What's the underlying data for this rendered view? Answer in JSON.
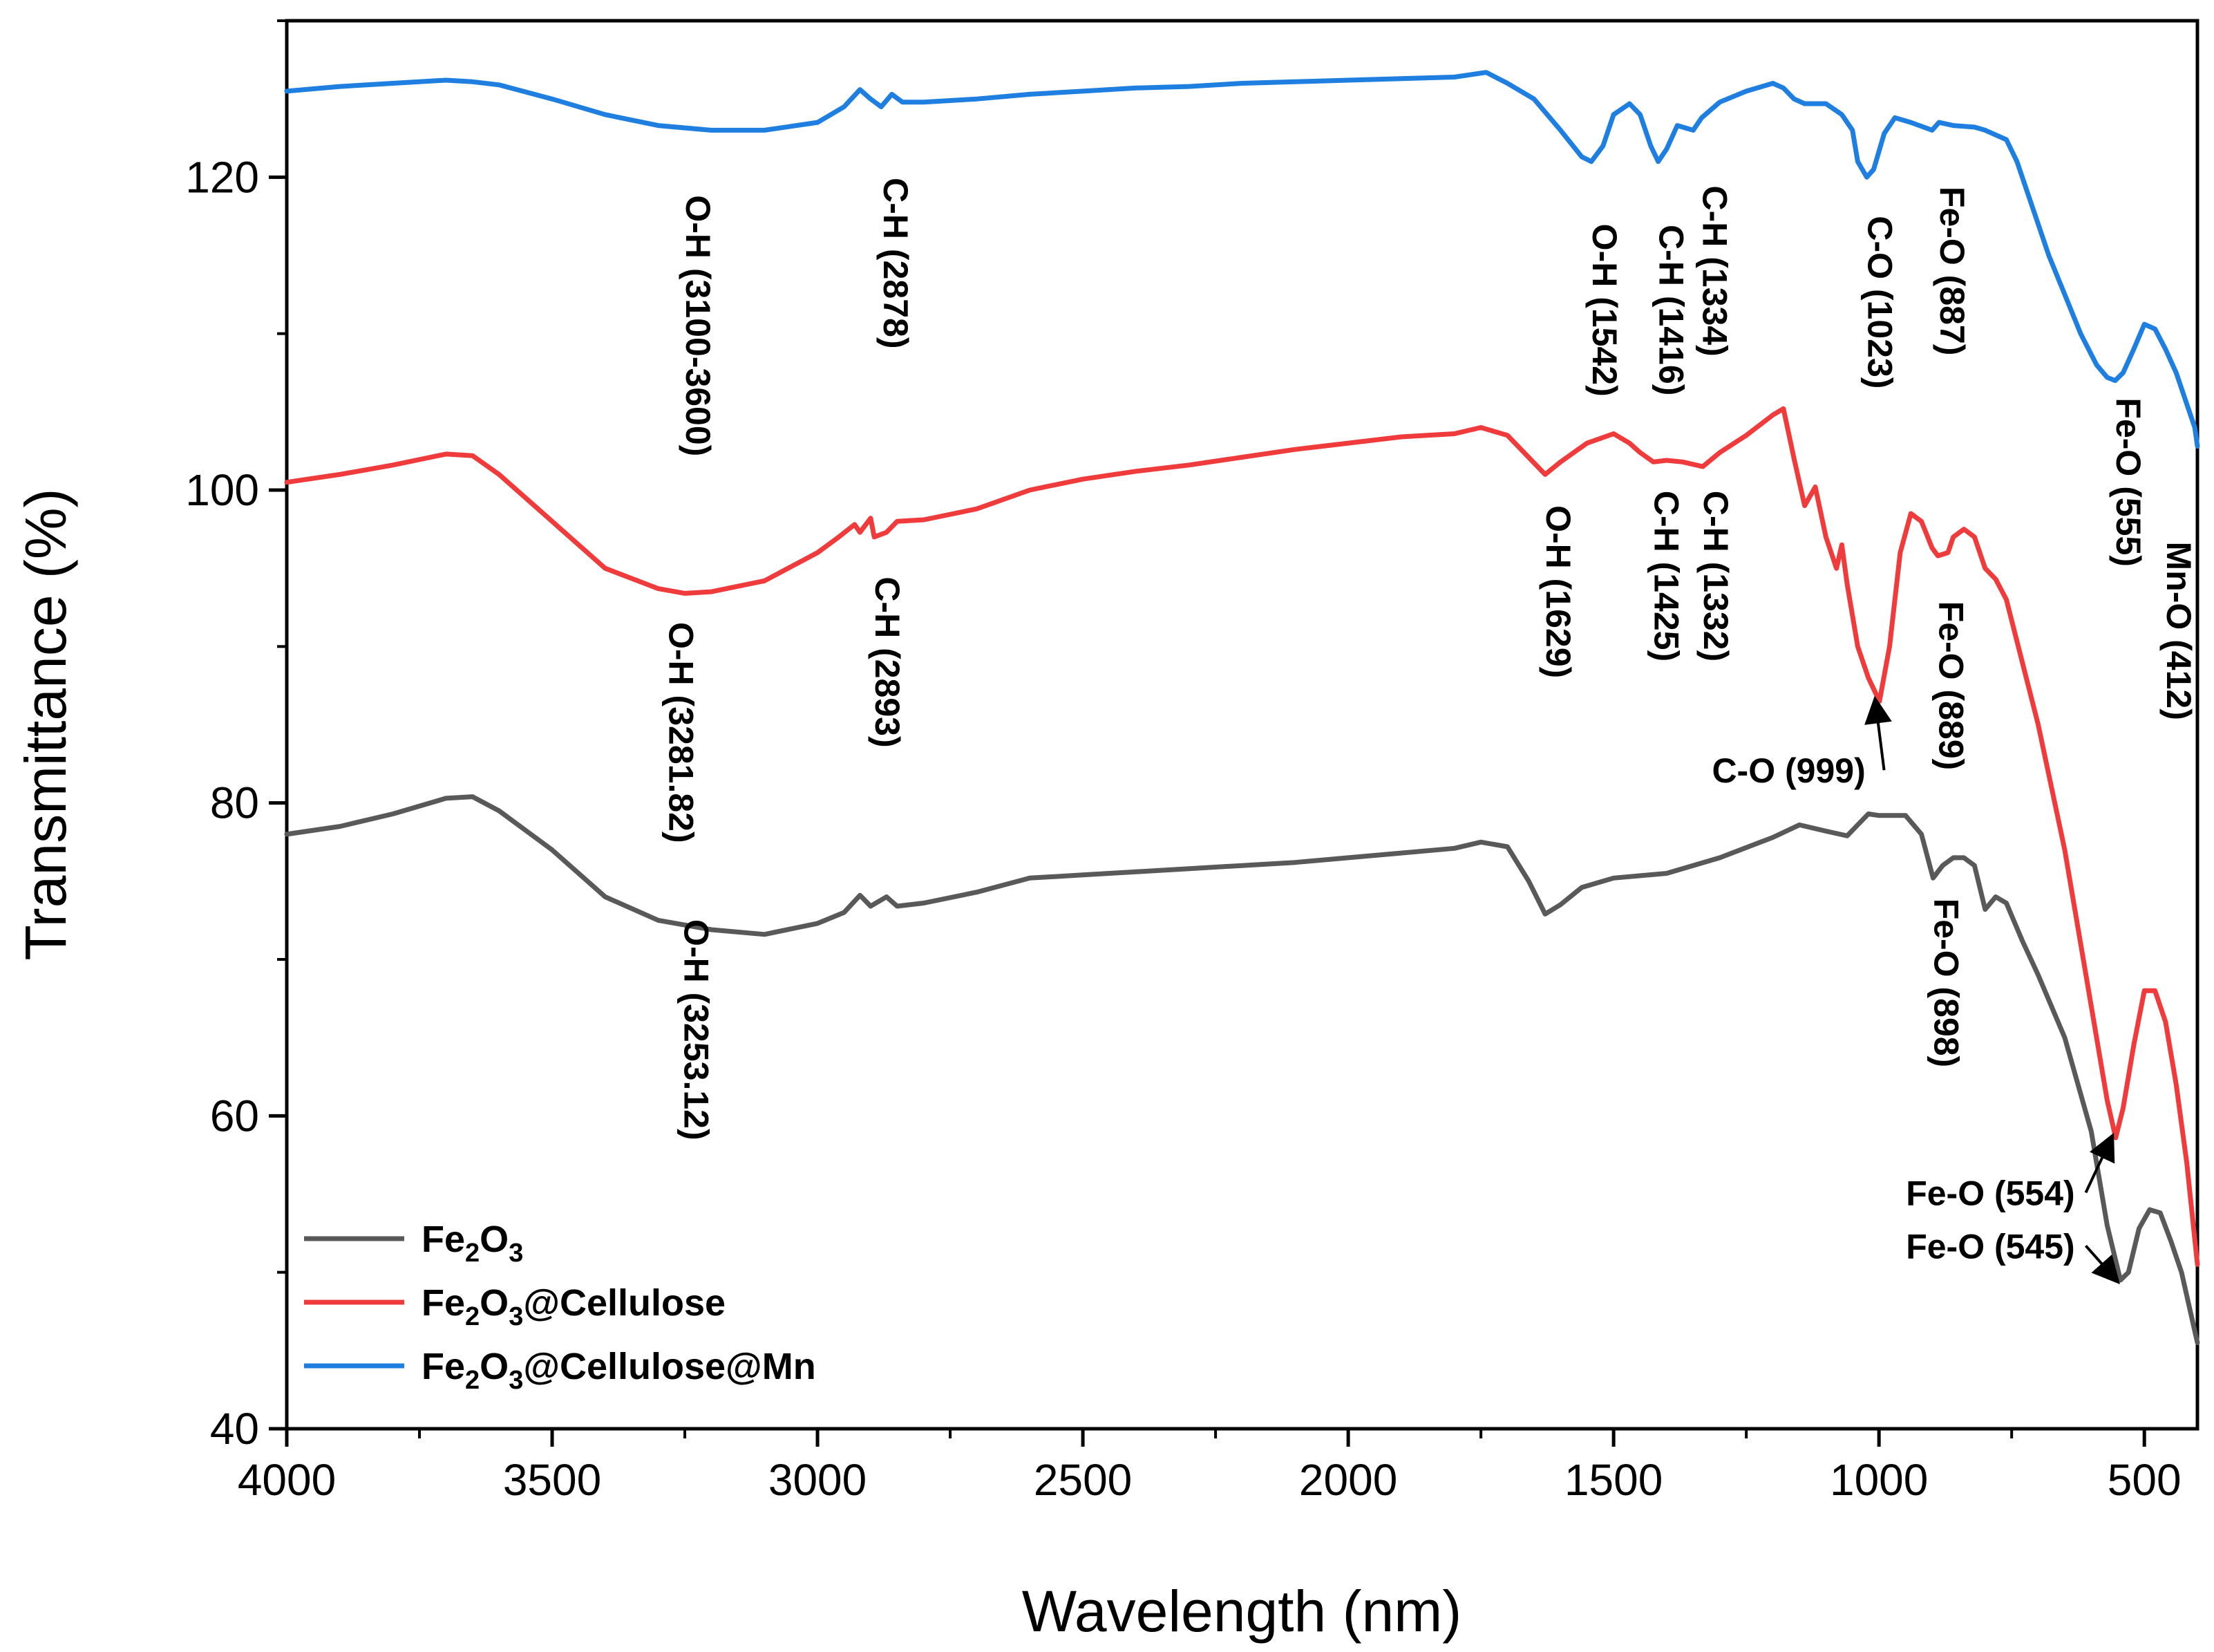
{
  "chart_data": {
    "type": "line",
    "title": "",
    "xlabel": "Wavelength (nm)",
    "ylabel": "Transmittance (%)",
    "xlim": [
      4000,
      400
    ],
    "ylim": [
      40,
      130
    ],
    "x_ticks": [
      4000,
      3500,
      3000,
      2500,
      2000,
      1500,
      1000,
      500
    ],
    "y_ticks": [
      40,
      60,
      80,
      100,
      120
    ],
    "grid": false,
    "legend_position": "bottom-left",
    "series": [
      {
        "name": "Fe2O3",
        "legend_main": "Fe",
        "legend_sub1": "2",
        "legend_mid": "O",
        "legend_sub2": "3",
        "legend_tail": "",
        "color": "#595959",
        "points": [
          [
            4000,
            78.0
          ],
          [
            3900,
            78.5
          ],
          [
            3800,
            79.3
          ],
          [
            3700,
            80.3
          ],
          [
            3650,
            80.4
          ],
          [
            3600,
            79.5
          ],
          [
            3500,
            77.0
          ],
          [
            3400,
            74.0
          ],
          [
            3300,
            72.5
          ],
          [
            3200,
            71.9
          ],
          [
            3100,
            71.6
          ],
          [
            3000,
            72.3
          ],
          [
            2950,
            73.0
          ],
          [
            2920,
            74.1
          ],
          [
            2900,
            73.4
          ],
          [
            2870,
            74.0
          ],
          [
            2850,
            73.4
          ],
          [
            2800,
            73.6
          ],
          [
            2700,
            74.3
          ],
          [
            2600,
            75.2
          ],
          [
            2500,
            75.4
          ],
          [
            2400,
            75.6
          ],
          [
            2300,
            75.8
          ],
          [
            2200,
            76.0
          ],
          [
            2100,
            76.2
          ],
          [
            2000,
            76.5
          ],
          [
            1900,
            76.8
          ],
          [
            1800,
            77.1
          ],
          [
            1750,
            77.5
          ],
          [
            1700,
            77.2
          ],
          [
            1660,
            75.0
          ],
          [
            1629,
            72.9
          ],
          [
            1600,
            73.5
          ],
          [
            1560,
            74.6
          ],
          [
            1500,
            75.2
          ],
          [
            1400,
            75.5
          ],
          [
            1300,
            76.5
          ],
          [
            1200,
            77.8
          ],
          [
            1150,
            78.6
          ],
          [
            1100,
            78.2
          ],
          [
            1060,
            77.9
          ],
          [
            1020,
            79.3
          ],
          [
            1000,
            79.2
          ],
          [
            950,
            79.2
          ],
          [
            920,
            78.0
          ],
          [
            898,
            75.2
          ],
          [
            880,
            76.0
          ],
          [
            860,
            76.5
          ],
          [
            840,
            76.5
          ],
          [
            820,
            76.0
          ],
          [
            800,
            73.2
          ],
          [
            780,
            74.0
          ],
          [
            760,
            73.6
          ],
          [
            730,
            71.2
          ],
          [
            700,
            69.0
          ],
          [
            650,
            65.0
          ],
          [
            600,
            59.0
          ],
          [
            570,
            53.0
          ],
          [
            545,
            49.5
          ],
          [
            530,
            50.0
          ],
          [
            510,
            52.8
          ],
          [
            490,
            54.0
          ],
          [
            470,
            53.8
          ],
          [
            450,
            52.0
          ],
          [
            430,
            50.0
          ],
          [
            410,
            47.0
          ],
          [
            400,
            45.5
          ]
        ],
        "labels": [
          {
            "text": "O-H (3253.12)",
            "x": 3253,
            "y": 65.5,
            "rotate": true
          },
          {
            "text": "Fe-O (898)",
            "x": 898,
            "y": 68.5,
            "rotate": true
          },
          {
            "text": "Fe-O (554)",
            "x": 790,
            "y": 54.3,
            "rotate": false,
            "arrow_to": [
              554,
              58.6
            ]
          },
          {
            "text": "Fe-O (545)",
            "x": 790,
            "y": 50.9,
            "rotate": false,
            "arrow_to": [
              545,
              49.5
            ]
          }
        ]
      },
      {
        "name": "Fe2O3@Cellulose",
        "legend_main": "Fe",
        "legend_sub1": "2",
        "legend_mid": "O",
        "legend_sub2": "3",
        "legend_tail": "@Cellulose",
        "color": "#ef3b3b",
        "points": [
          [
            4000,
            100.5
          ],
          [
            3900,
            101.0
          ],
          [
            3800,
            101.6
          ],
          [
            3700,
            102.3
          ],
          [
            3650,
            102.2
          ],
          [
            3600,
            101.0
          ],
          [
            3500,
            98.0
          ],
          [
            3400,
            95.0
          ],
          [
            3300,
            93.7
          ],
          [
            3250,
            93.4
          ],
          [
            3200,
            93.5
          ],
          [
            3100,
            94.2
          ],
          [
            3000,
            96.0
          ],
          [
            2960,
            97.0
          ],
          [
            2930,
            97.8
          ],
          [
            2920,
            97.3
          ],
          [
            2900,
            98.2
          ],
          [
            2893,
            97.0
          ],
          [
            2870,
            97.3
          ],
          [
            2850,
            98.0
          ],
          [
            2800,
            98.1
          ],
          [
            2700,
            98.8
          ],
          [
            2600,
            100.0
          ],
          [
            2500,
            100.7
          ],
          [
            2400,
            101.2
          ],
          [
            2300,
            101.6
          ],
          [
            2200,
            102.1
          ],
          [
            2100,
            102.6
          ],
          [
            2000,
            103.0
          ],
          [
            1900,
            103.4
          ],
          [
            1800,
            103.6
          ],
          [
            1750,
            104.0
          ],
          [
            1700,
            103.5
          ],
          [
            1629,
            101.0
          ],
          [
            1600,
            101.8
          ],
          [
            1550,
            103.0
          ],
          [
            1500,
            103.6
          ],
          [
            1470,
            103.0
          ],
          [
            1450,
            102.4
          ],
          [
            1425,
            101.8
          ],
          [
            1400,
            101.9
          ],
          [
            1370,
            101.8
          ],
          [
            1332,
            101.5
          ],
          [
            1300,
            102.4
          ],
          [
            1250,
            103.5
          ],
          [
            1200,
            104.8
          ],
          [
            1180,
            105.2
          ],
          [
            1160,
            102.0
          ],
          [
            1140,
            99.0
          ],
          [
            1120,
            100.2
          ],
          [
            1100,
            97.0
          ],
          [
            1080,
            95.0
          ],
          [
            1070,
            96.5
          ],
          [
            1060,
            94.0
          ],
          [
            1040,
            90.0
          ],
          [
            1020,
            88.0
          ],
          [
            999,
            86.5
          ],
          [
            980,
            90.0
          ],
          [
            960,
            96.0
          ],
          [
            940,
            98.5
          ],
          [
            920,
            98.0
          ],
          [
            900,
            96.3
          ],
          [
            889,
            95.8
          ],
          [
            870,
            96.0
          ],
          [
            860,
            97.0
          ],
          [
            840,
            97.5
          ],
          [
            820,
            97.0
          ],
          [
            800,
            95.0
          ],
          [
            780,
            94.3
          ],
          [
            760,
            93.0
          ],
          [
            700,
            85.0
          ],
          [
            650,
            77.0
          ],
          [
            600,
            67.0
          ],
          [
            570,
            61.0
          ],
          [
            554,
            58.6
          ],
          [
            540,
            60.5
          ],
          [
            520,
            64.5
          ],
          [
            500,
            68.0
          ],
          [
            480,
            68.0
          ],
          [
            460,
            66.0
          ],
          [
            440,
            62.0
          ],
          [
            420,
            57.0
          ],
          [
            400,
            50.5
          ]
        ],
        "labels": [
          {
            "text": "O-H (3281.82)",
            "x": 3281.82,
            "y": 84.5,
            "rotate": true
          },
          {
            "text": "C-H (2893)",
            "x": 2893,
            "y": 89.0,
            "rotate": true
          },
          {
            "text": "O-H (1629)",
            "x": 1629,
            "y": 93.5,
            "rotate": true
          },
          {
            "text": "C-H (1425)",
            "x": 1425,
            "y": 94.5,
            "rotate": true
          },
          {
            "text": "C-H (1332)",
            "x": 1332,
            "y": 94.5,
            "rotate": true
          },
          {
            "text": "Fe-O (889)",
            "x": 889,
            "y": 87.5,
            "rotate": true
          },
          {
            "text": "C-O (999)",
            "x": 1170,
            "y": 81.3,
            "rotate": false,
            "arrow_to": [
              999,
              86.5
            ]
          }
        ]
      },
      {
        "name": "Fe2O3@Cellulose@Mn",
        "legend_main": "Fe",
        "legend_sub1": "2",
        "legend_mid": "O",
        "legend_sub2": "3",
        "legend_tail": "@Cellulose@Mn",
        "color": "#1f7fe0",
        "points": [
          [
            4000,
            125.5
          ],
          [
            3900,
            125.8
          ],
          [
            3800,
            126.0
          ],
          [
            3700,
            126.2
          ],
          [
            3650,
            126.1
          ],
          [
            3600,
            125.9
          ],
          [
            3500,
            125.0
          ],
          [
            3400,
            124.0
          ],
          [
            3300,
            123.3
          ],
          [
            3200,
            123.0
          ],
          [
            3100,
            123.0
          ],
          [
            3000,
            123.5
          ],
          [
            2950,
            124.5
          ],
          [
            2920,
            125.6
          ],
          [
            2900,
            125.0
          ],
          [
            2880,
            124.5
          ],
          [
            2860,
            125.3
          ],
          [
            2840,
            124.8
          ],
          [
            2800,
            124.8
          ],
          [
            2700,
            125.0
          ],
          [
            2600,
            125.3
          ],
          [
            2500,
            125.5
          ],
          [
            2400,
            125.7
          ],
          [
            2300,
            125.8
          ],
          [
            2200,
            126.0
          ],
          [
            2100,
            126.1
          ],
          [
            2000,
            126.2
          ],
          [
            1900,
            126.3
          ],
          [
            1800,
            126.4
          ],
          [
            1740,
            126.7
          ],
          [
            1700,
            126.0
          ],
          [
            1650,
            125.0
          ],
          [
            1600,
            123.0
          ],
          [
            1560,
            121.3
          ],
          [
            1542,
            121.0
          ],
          [
            1520,
            122.0
          ],
          [
            1500,
            124.0
          ],
          [
            1470,
            124.7
          ],
          [
            1450,
            124.0
          ],
          [
            1430,
            122.0
          ],
          [
            1416,
            121.0
          ],
          [
            1400,
            121.8
          ],
          [
            1380,
            123.3
          ],
          [
            1350,
            123.0
          ],
          [
            1334,
            123.8
          ],
          [
            1300,
            124.8
          ],
          [
            1250,
            125.5
          ],
          [
            1200,
            126.0
          ],
          [
            1180,
            125.7
          ],
          [
            1160,
            125.0
          ],
          [
            1140,
            124.7
          ],
          [
            1100,
            124.7
          ],
          [
            1070,
            124.0
          ],
          [
            1050,
            123.0
          ],
          [
            1040,
            121.0
          ],
          [
            1023,
            120.0
          ],
          [
            1010,
            120.5
          ],
          [
            990,
            122.8
          ],
          [
            970,
            123.8
          ],
          [
            940,
            123.5
          ],
          [
            900,
            123.0
          ],
          [
            887,
            123.5
          ],
          [
            860,
            123.3
          ],
          [
            820,
            123.2
          ],
          [
            800,
            123.0
          ],
          [
            760,
            122.4
          ],
          [
            740,
            121.0
          ],
          [
            720,
            119.0
          ],
          [
            700,
            117.0
          ],
          [
            680,
            115.0
          ],
          [
            650,
            112.5
          ],
          [
            620,
            110.0
          ],
          [
            590,
            108.0
          ],
          [
            570,
            107.2
          ],
          [
            555,
            107.0
          ],
          [
            540,
            107.5
          ],
          [
            520,
            109.0
          ],
          [
            500,
            110.6
          ],
          [
            480,
            110.3
          ],
          [
            460,
            109.0
          ],
          [
            440,
            107.5
          ],
          [
            420,
            105.5
          ],
          [
            405,
            104.0
          ],
          [
            400,
            102.8
          ]
        ],
        "labels": [
          {
            "text": "O-H (3100-3600)",
            "x": 3250,
            "y": 110.5,
            "rotate": true
          },
          {
            "text": "C-H (2878)",
            "x": 2878,
            "y": 114.5,
            "rotate": true
          },
          {
            "text": "O-H (1542)",
            "x": 1542,
            "y": 111.5,
            "rotate": true
          },
          {
            "text": "C-H (1416)",
            "x": 1416,
            "y": 111.5,
            "rotate": true
          },
          {
            "text": "C-H (1334)",
            "x": 1334,
            "y": 114.0,
            "rotate": true
          },
          {
            "text": "C-O (1023)",
            "x": 1023,
            "y": 112.0,
            "rotate": true
          },
          {
            "text": "Fe-O (887)",
            "x": 887,
            "y": 114.0,
            "rotate": true
          },
          {
            "text": "Fe-O (555)",
            "x": 555,
            "y": 100.5,
            "rotate": true
          },
          {
            "text": "Mn-O (412)",
            "x": 460,
            "y": 91.0,
            "rotate": true
          }
        ]
      }
    ]
  }
}
